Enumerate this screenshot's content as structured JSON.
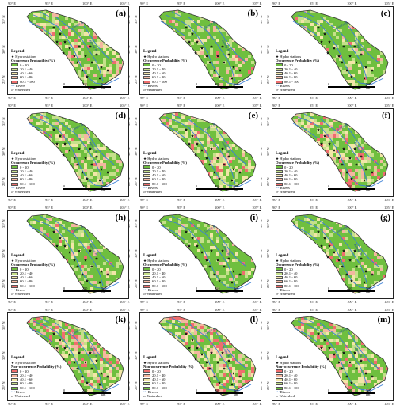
{
  "longitude_ticks": [
    "90° E",
    "95° E",
    "100° E",
    "105° E"
  ],
  "latitude_ticks": [
    "35° N",
    "30° N",
    "25° N"
  ],
  "rivers": [
    "Jinsha R.",
    "Yalong R."
  ],
  "legend": {
    "title": "Legend",
    "hydro_stations": "Hydro stations",
    "rivers": "Rivers",
    "watershed": "Watershed"
  },
  "scale_bar": [
    "0",
    "250",
    "500 km"
  ],
  "classes": [
    "0 - 20",
    "20.1 - 40",
    "40.1 - 60",
    "60.1 - 80",
    "80.1 - 100"
  ],
  "colors": {
    "occurrence": [
      "#6fbf3f",
      "#c5e08a",
      "#f2e6a8",
      "#f3b7a0",
      "#ef6e6e"
    ],
    "non_occurrence": [
      "#ef6e6e",
      "#f3b7a0",
      "#f2e6a8",
      "#c5e08a",
      "#6fbf3f"
    ],
    "river": "#3b7fd6",
    "outline": "#333333"
  },
  "panels": [
    {
      "label": "(a)",
      "legend_type": "Occurrence Probability (%)",
      "mix": [
        0.55,
        0.2,
        0.12,
        0.08,
        0.05
      ]
    },
    {
      "label": "(b)",
      "legend_type": "Occurrence Probability (%)",
      "mix": [
        0.7,
        0.15,
        0.08,
        0.05,
        0.02
      ]
    },
    {
      "label": "(c)",
      "legend_type": "Occurrence Probability (%)",
      "mix": [
        0.72,
        0.14,
        0.08,
        0.04,
        0.02
      ]
    },
    {
      "label": "(d)",
      "legend_type": "Occurrence Probability (%)",
      "mix": [
        0.6,
        0.2,
        0.1,
        0.06,
        0.04
      ]
    },
    {
      "label": "(e)",
      "legend_type": "Occurrence Probability (%)",
      "mix": [
        0.55,
        0.18,
        0.12,
        0.09,
        0.06
      ]
    },
    {
      "label": "(f)",
      "legend_type": "Occurrence Probability (%)",
      "mix": [
        0.5,
        0.18,
        0.12,
        0.1,
        0.1
      ]
    },
    {
      "label": "(h)",
      "legend_type": "Occurrence Probability (%)",
      "mix": [
        0.68,
        0.17,
        0.08,
        0.05,
        0.02
      ]
    },
    {
      "label": "(i)",
      "legend_type": "Occurrence Probability (%)",
      "mix": [
        0.75,
        0.13,
        0.07,
        0.03,
        0.02
      ]
    },
    {
      "label": "(g)",
      "legend_type": "Occurrence Probability (%)",
      "mix": [
        0.73,
        0.14,
        0.07,
        0.04,
        0.02
      ]
    },
    {
      "label": "(k)",
      "legend_type": "Non-occurrence Probability (%)",
      "mix": [
        0.1,
        0.12,
        0.13,
        0.15,
        0.5
      ]
    },
    {
      "label": "(l)",
      "legend_type": "Non-occurrence Probability (%)",
      "mix": [
        0.12,
        0.15,
        0.15,
        0.15,
        0.43
      ]
    },
    {
      "label": "(m)",
      "legend_type": "Non-occurrence Probability (%)",
      "mix": [
        0.08,
        0.1,
        0.12,
        0.15,
        0.55
      ]
    }
  ]
}
